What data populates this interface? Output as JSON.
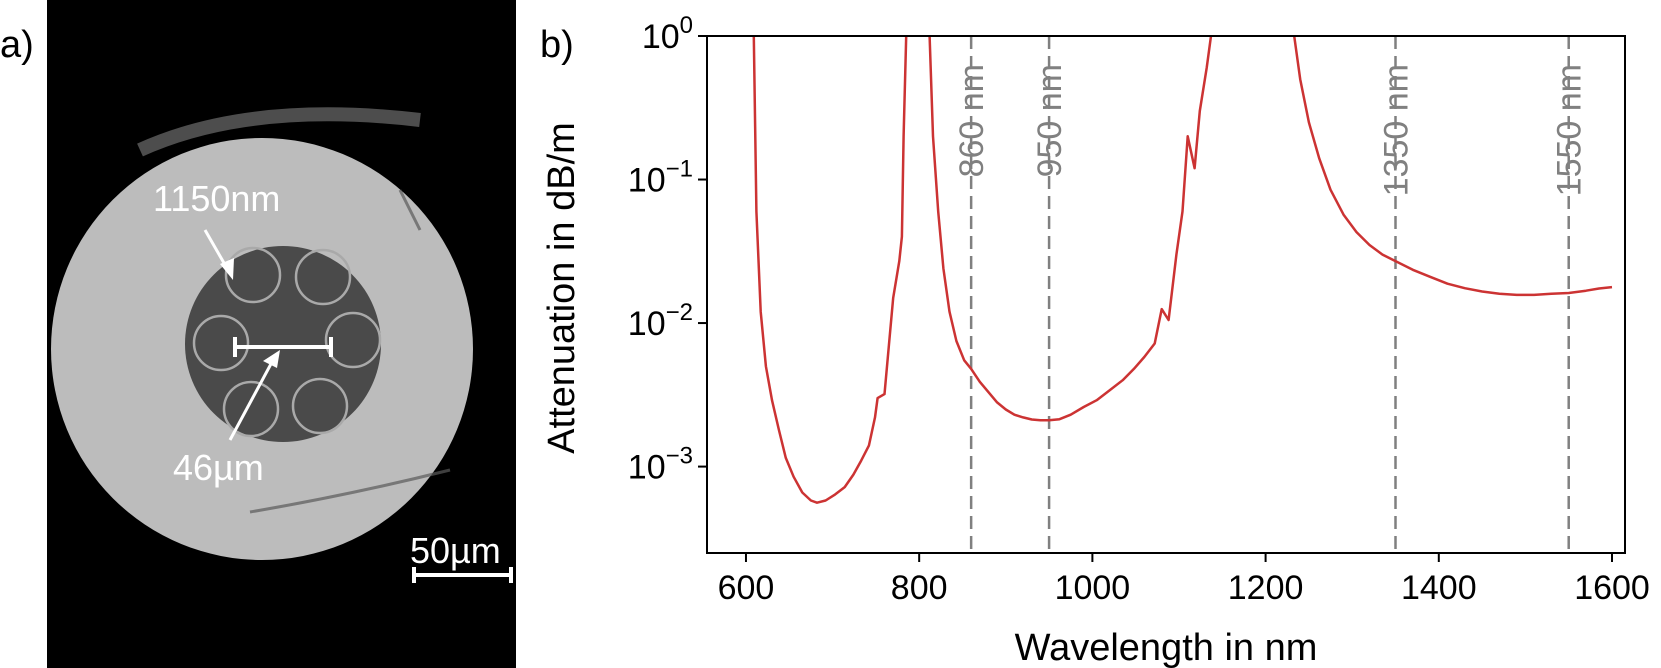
{
  "panel_a": {
    "label": "a)",
    "annotations": {
      "tube_diameter": "1150nm",
      "core_diameter": "46µm",
      "scale_bar": "50µm"
    },
    "colors": {
      "background": "#000000",
      "cladding": "#bcbcbc",
      "core": "#4a4a4a",
      "annotation": "#ffffff"
    }
  },
  "panel_b": {
    "label": "b)",
    "chart_data": {
      "type": "line",
      "xlabel": "Wavelength in nm",
      "ylabel": "Attenuation in dB/m",
      "x_ticks": [
        600,
        800,
        1000,
        1200,
        1400,
        1600
      ],
      "y_ticks": [
        {
          "value": 0.001,
          "base": "10",
          "exp": "−3"
        },
        {
          "value": 0.01,
          "base": "10",
          "exp": "−2"
        },
        {
          "value": 0.1,
          "base": "10",
          "exp": "−1"
        },
        {
          "value": 1,
          "base": "10",
          "exp": "0"
        }
      ],
      "xlim": [
        555,
        1615
      ],
      "ylim": [
        0.00025,
        1
      ],
      "yscale": "log",
      "grid": false,
      "line_color": "#cc3333",
      "ref_color": "#808080",
      "reference_lines": [
        {
          "x": 860,
          "label": "860 nm"
        },
        {
          "x": 950,
          "label": "950 nm"
        },
        {
          "x": 1350,
          "label": "1350 nm"
        },
        {
          "x": 1550,
          "label": "1550 nm"
        }
      ],
      "segments": [
        [
          [
            609,
            1
          ],
          [
            612,
            0.06
          ],
          [
            617,
            0.012
          ],
          [
            623,
            0.005
          ],
          [
            630,
            0.0029
          ],
          [
            638,
            0.0018
          ],
          [
            646,
            0.00115
          ],
          [
            655,
            0.00085
          ],
          [
            665,
            0.00066
          ],
          [
            675,
            0.00058
          ],
          [
            682,
            0.00056
          ],
          [
            692,
            0.00058
          ],
          [
            703,
            0.00064
          ],
          [
            714,
            0.00072
          ],
          [
            724,
            0.00088
          ],
          [
            733,
            0.0011
          ],
          [
            742,
            0.0014
          ],
          [
            749,
            0.0022
          ],
          [
            752,
            0.003
          ],
          [
            760,
            0.0032
          ],
          [
            765,
            0.007
          ],
          [
            770,
            0.015
          ],
          [
            777,
            0.027
          ],
          [
            780,
            0.04
          ],
          [
            782,
            0.2
          ],
          [
            785,
            1
          ]
        ],
        [
          [
            812,
            1
          ],
          [
            816,
            0.2
          ],
          [
            822,
            0.06
          ],
          [
            828,
            0.024
          ],
          [
            835,
            0.012
          ],
          [
            843,
            0.0075
          ],
          [
            852,
            0.0055
          ],
          [
            860,
            0.0048
          ],
          [
            870,
            0.0039
          ],
          [
            880,
            0.0033
          ],
          [
            890,
            0.0028
          ],
          [
            900,
            0.0025
          ],
          [
            910,
            0.0023
          ],
          [
            920,
            0.0022
          ],
          [
            930,
            0.00213
          ],
          [
            940,
            0.0021
          ],
          [
            950,
            0.0021
          ],
          [
            962,
            0.00214
          ],
          [
            975,
            0.0023
          ],
          [
            990,
            0.0026
          ],
          [
            1005,
            0.0029
          ],
          [
            1020,
            0.0034
          ],
          [
            1035,
            0.004
          ],
          [
            1048,
            0.0048
          ],
          [
            1060,
            0.0058
          ],
          [
            1072,
            0.0072
          ],
          [
            1080,
            0.0125
          ],
          [
            1088,
            0.0105
          ],
          [
            1097,
            0.03
          ],
          [
            1104,
            0.06
          ],
          [
            1110,
            0.2
          ],
          [
            1118,
            0.12
          ],
          [
            1124,
            0.3
          ],
          [
            1132,
            0.6
          ],
          [
            1137,
            1
          ]
        ],
        [
          [
            1233,
            1
          ],
          [
            1240,
            0.5
          ],
          [
            1250,
            0.25
          ],
          [
            1262,
            0.14
          ],
          [
            1275,
            0.085
          ],
          [
            1290,
            0.057
          ],
          [
            1305,
            0.043
          ],
          [
            1320,
            0.035
          ],
          [
            1335,
            0.03
          ],
          [
            1350,
            0.027
          ],
          [
            1370,
            0.0235
          ],
          [
            1390,
            0.021
          ],
          [
            1410,
            0.0188
          ],
          [
            1430,
            0.0175
          ],
          [
            1450,
            0.0166
          ],
          [
            1470,
            0.016
          ],
          [
            1490,
            0.0157
          ],
          [
            1510,
            0.0157
          ],
          [
            1530,
            0.016
          ],
          [
            1550,
            0.0162
          ],
          [
            1570,
            0.0168
          ],
          [
            1585,
            0.0174
          ],
          [
            1600,
            0.0178
          ]
        ]
      ]
    }
  }
}
